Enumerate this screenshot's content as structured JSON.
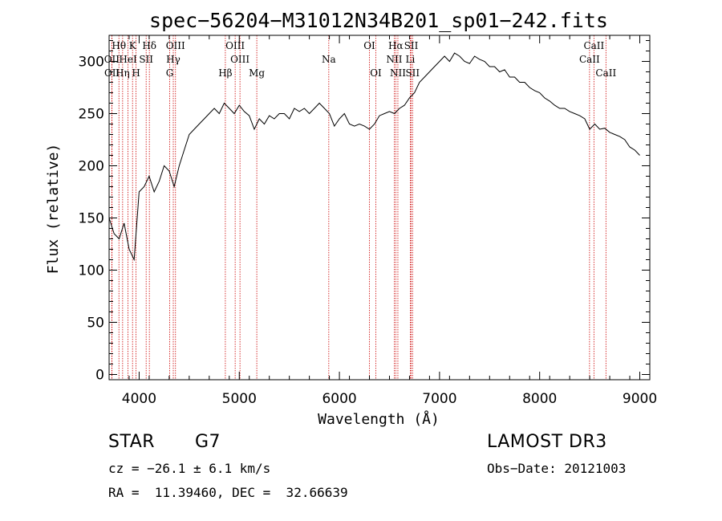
{
  "chart_data": {
    "type": "line",
    "title": "spec−56204−M31012N34B201_sp01−242.fits",
    "xlabel": "Wavelength (Å)",
    "ylabel": "Flux (relative)",
    "xlim": [
      3700,
      9100
    ],
    "ylim": [
      -5,
      325
    ],
    "x_ticks": [
      4000,
      5000,
      6000,
      7000,
      8000,
      9000
    ],
    "y_ticks": [
      0,
      50,
      100,
      150,
      200,
      250,
      300
    ],
    "series": [
      {
        "name": "spectrum",
        "x": [
          3700,
          3750,
          3800,
          3850,
          3900,
          3950,
          4000,
          4050,
          4100,
          4150,
          4200,
          4250,
          4300,
          4350,
          4400,
          4450,
          4500,
          4550,
          4600,
          4650,
          4700,
          4750,
          4800,
          4850,
          4900,
          4950,
          5000,
          5050,
          5100,
          5150,
          5200,
          5250,
          5300,
          5350,
          5400,
          5450,
          5500,
          5550,
          5600,
          5650,
          5700,
          5750,
          5800,
          5850,
          5900,
          5950,
          6000,
          6050,
          6100,
          6150,
          6200,
          6250,
          6300,
          6350,
          6400,
          6450,
          6500,
          6550,
          6600,
          6650,
          6700,
          6750,
          6800,
          6850,
          6900,
          6950,
          7000,
          7050,
          7100,
          7150,
          7200,
          7250,
          7300,
          7350,
          7400,
          7450,
          7500,
          7550,
          7600,
          7650,
          7700,
          7750,
          7800,
          7850,
          7900,
          7950,
          8000,
          8050,
          8100,
          8150,
          8200,
          8250,
          8300,
          8350,
          8400,
          8450,
          8500,
          8550,
          8600,
          8650,
          8700,
          8750,
          8800,
          8850,
          8900,
          8950,
          9000
        ],
        "y": [
          150,
          135,
          130,
          145,
          120,
          110,
          175,
          180,
          190,
          175,
          185,
          200,
          195,
          180,
          200,
          215,
          230,
          235,
          240,
          245,
          250,
          255,
          250,
          260,
          255,
          250,
          258,
          252,
          248,
          235,
          245,
          240,
          248,
          245,
          250,
          250,
          245,
          255,
          252,
          255,
          250,
          255,
          260,
          255,
          250,
          238,
          245,
          250,
          240,
          238,
          240,
          238,
          235,
          240,
          248,
          250,
          252,
          250,
          255,
          258,
          265,
          270,
          280,
          285,
          290,
          295,
          300,
          305,
          300,
          308,
          305,
          300,
          298,
          305,
          302,
          300,
          295,
          295,
          290,
          292,
          285,
          285,
          280,
          280,
          275,
          272,
          270,
          265,
          262,
          258,
          255,
          255,
          252,
          250,
          248,
          245,
          235,
          240,
          235,
          236,
          232,
          230,
          228,
          225,
          218,
          215,
          210
        ]
      }
    ],
    "line_markers": [
      {
        "label": "Hθ",
        "wavelength": 3798,
        "row": 0
      },
      {
        "label": "OII",
        "wavelength": 3727,
        "row": 1
      },
      {
        "label": "OII",
        "wavelength": 3729,
        "row": 2
      },
      {
        "label": "HeI",
        "wavelength": 3889,
        "row": 1
      },
      {
        "label": "Hη",
        "wavelength": 3835,
        "row": 2
      },
      {
        "label": "K",
        "wavelength": 3934,
        "row": 0
      },
      {
        "label": "H",
        "wavelength": 3969,
        "row": 2
      },
      {
        "label": "SII",
        "wavelength": 4070,
        "row": 1
      },
      {
        "label": "Hδ",
        "wavelength": 4102,
        "row": 0
      },
      {
        "label": "OIII",
        "wavelength": 4363,
        "row": 0
      },
      {
        "label": "Hγ",
        "wavelength": 4341,
        "row": 1
      },
      {
        "label": "G",
        "wavelength": 4305,
        "row": 2
      },
      {
        "label": "Hβ",
        "wavelength": 4861,
        "row": 2
      },
      {
        "label": "OIII",
        "wavelength": 4959,
        "row": 0
      },
      {
        "label": "OIII",
        "wavelength": 5007,
        "row": 1
      },
      {
        "label": "Mg",
        "wavelength": 5175,
        "row": 2
      },
      {
        "label": "Na",
        "wavelength": 5894,
        "row": 1
      },
      {
        "label": "OI",
        "wavelength": 6300,
        "row": 0
      },
      {
        "label": "OI",
        "wavelength": 6364,
        "row": 2
      },
      {
        "label": "Hα",
        "wavelength": 6563,
        "row": 0
      },
      {
        "label": "NII",
        "wavelength": 6548,
        "row": 1
      },
      {
        "label": "NII",
        "wavelength": 6584,
        "row": 2
      },
      {
        "label": "SII",
        "wavelength": 6717,
        "row": 0
      },
      {
        "label": "Li",
        "wavelength": 6708,
        "row": 1
      },
      {
        "label": "SII",
        "wavelength": 6731,
        "row": 2
      },
      {
        "label": "CaII",
        "wavelength": 8542,
        "row": 0
      },
      {
        "label": "CaII",
        "wavelength": 8498,
        "row": 1
      },
      {
        "label": "CaII",
        "wavelength": 8662,
        "row": 2
      }
    ]
  },
  "info": {
    "object_class": "STAR",
    "subclass": "G7",
    "survey": "LAMOST DR3",
    "redshift": "cz = −26.1 ± 6.1 km/s",
    "obs_date": "Obs−Date: 20121003",
    "coords": "RA =  11.39460, DEC =  32.66639"
  },
  "colors": {
    "line_marker": "#cc0000",
    "spectrum": "#000000"
  }
}
